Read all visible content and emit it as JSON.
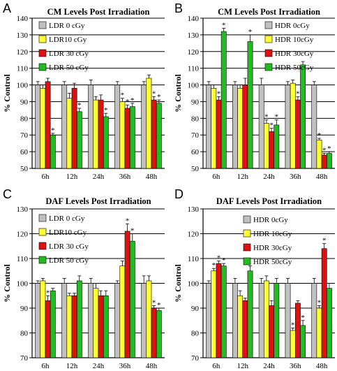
{
  "colors": {
    "gray": "#c0c0c0",
    "yellow": "#ffff33",
    "red": "#dd1111",
    "green": "#22bb22"
  },
  "chart_data": [
    {
      "panel": "A",
      "type": "bar",
      "title": "CM Levels Post Irradiation",
      "xlabel": "",
      "ylabel": "% Control",
      "ylim": [
        50,
        140
      ],
      "yticks": [
        "50",
        "60",
        "70",
        "80",
        "90",
        "100",
        "110",
        "120",
        "130",
        "140"
      ],
      "grid": true,
      "legend_position": "top-left",
      "categories": [
        "6h",
        "12h",
        "24h",
        "36h",
        "48h"
      ],
      "series": [
        {
          "name": "LDR 0 cGy",
          "color": "gray",
          "values": [
            100,
            100,
            100,
            100,
            100
          ],
          "errors": [
            2,
            2,
            3,
            2,
            2
          ],
          "significant": [
            false,
            false,
            false,
            false,
            false
          ]
        },
        {
          "name": "LDR10 cGy",
          "color": "yellow",
          "values": [
            98,
            92,
            91,
            90,
            104
          ],
          "errors": [
            2,
            3,
            2,
            2,
            2
          ],
          "significant": [
            false,
            false,
            false,
            true,
            false
          ]
        },
        {
          "name": "LDR 30 cGy",
          "color": "red",
          "values": [
            102,
            98,
            91,
            86,
            91
          ],
          "errors": [
            2,
            3,
            3,
            2,
            2
          ],
          "significant": [
            false,
            false,
            false,
            true,
            true
          ]
        },
        {
          "name": "LDR 50 cGy",
          "color": "green",
          "values": [
            70,
            84,
            81,
            87,
            89
          ],
          "errors": [
            1,
            2,
            2,
            2,
            2
          ],
          "significant": [
            true,
            true,
            true,
            true,
            true
          ]
        }
      ]
    },
    {
      "panel": "B",
      "type": "bar",
      "title": "CM Levels Post Irradiation",
      "xlabel": "",
      "ylabel": "% Control",
      "ylim": [
        50,
        140
      ],
      "yticks": [
        "50",
        "60",
        "70",
        "80",
        "90",
        "100",
        "110",
        "120",
        "130",
        "140"
      ],
      "grid": true,
      "legend_position": "top-left",
      "categories": [
        "6h",
        "12h",
        "24h",
        "36h",
        "48h"
      ],
      "series": [
        {
          "name": "HDR 0cGy",
          "color": "gray",
          "values": [
            100,
            100,
            100,
            100,
            100
          ],
          "errors": [
            2,
            2,
            4,
            2,
            2
          ],
          "significant": [
            false,
            false,
            false,
            false,
            false
          ]
        },
        {
          "name": "HDR 10cGy",
          "color": "yellow",
          "values": [
            98,
            98,
            77,
            101,
            67
          ],
          "errors": [
            2,
            2,
            2,
            2,
            1
          ],
          "significant": [
            false,
            false,
            true,
            false,
            true
          ]
        },
        {
          "name": "HDR 30cGy",
          "color": "red",
          "values": [
            91,
            100,
            72,
            91,
            58
          ],
          "errors": [
            2,
            4,
            2,
            2,
            1
          ],
          "significant": [
            true,
            false,
            true,
            true,
            true
          ]
        },
        {
          "name": "HDR 50cGy",
          "color": "green",
          "values": [
            132,
            126,
            76,
            112,
            59
          ],
          "errors": [
            2,
            4,
            3,
            2,
            1
          ],
          "significant": [
            true,
            true,
            true,
            false,
            true
          ]
        }
      ]
    },
    {
      "panel": "C",
      "type": "bar",
      "title": "DAF Levels Post Irradiation",
      "xlabel": "",
      "ylabel": "% Control",
      "ylim": [
        70,
        130
      ],
      "yticks": [
        "70",
        "80",
        "90",
        "100",
        "110",
        "120",
        "130"
      ],
      "grid": true,
      "legend_position": "top-left",
      "categories": [
        "6h",
        "12h",
        "24h",
        "36h",
        "48h"
      ],
      "series": [
        {
          "name": "LDR 0 cGy",
          "color": "gray",
          "values": [
            100,
            100,
            100,
            100,
            100
          ],
          "errors": [
            1,
            2,
            2,
            1,
            3
          ],
          "significant": [
            false,
            false,
            false,
            false,
            false
          ]
        },
        {
          "name": "LDR10 cGy",
          "color": "yellow",
          "values": [
            101,
            95,
            98,
            107,
            101
          ],
          "errors": [
            1,
            1,
            2,
            2,
            2
          ],
          "significant": [
            false,
            false,
            false,
            false,
            false
          ]
        },
        {
          "name": "LDR 30 cGy",
          "color": "red",
          "values": [
            93,
            95,
            95,
            121,
            90
          ],
          "errors": [
            2,
            1,
            2,
            3,
            1
          ],
          "significant": [
            true,
            false,
            false,
            true,
            true
          ]
        },
        {
          "name": "LDR 50 cGy",
          "color": "green",
          "values": [
            97,
            101,
            95,
            117,
            89
          ],
          "errors": [
            1,
            2,
            2,
            3,
            1
          ],
          "significant": [
            false,
            false,
            false,
            true,
            true
          ]
        }
      ]
    },
    {
      "panel": "D",
      "type": "bar",
      "title": "DAF Levels Post Irradiation",
      "xlabel": "",
      "ylabel": "% Control",
      "ylim": [
        70,
        130
      ],
      "yticks": [
        "70",
        "80",
        "90",
        "100",
        "110",
        "120",
        "130"
      ],
      "grid": true,
      "legend_position": "top-right",
      "categories": [
        "6h",
        "12h",
        "24h",
        "36h",
        "48h"
      ],
      "series": [
        {
          "name": "HDR 0cGy",
          "color": "gray",
          "values": [
            100,
            100,
            100,
            100,
            100
          ],
          "errors": [
            1,
            2,
            2,
            2,
            2
          ],
          "significant": [
            false,
            false,
            false,
            false,
            false
          ]
        },
        {
          "name": "HDR 10cGy",
          "color": "yellow",
          "values": [
            105,
            95,
            101,
            81,
            90
          ],
          "errors": [
            1,
            2,
            2,
            1,
            1
          ],
          "significant": [
            true,
            false,
            false,
            true,
            true
          ]
        },
        {
          "name": "HDR 30cGy",
          "color": "red",
          "values": [
            108,
            93,
            91,
            92,
            114
          ],
          "errors": [
            1,
            1,
            2,
            1,
            2
          ],
          "significant": [
            true,
            false,
            false,
            false,
            true
          ]
        },
        {
          "name": "HDR 50cGy",
          "color": "green",
          "values": [
            107,
            105,
            100,
            83,
            98
          ],
          "errors": [
            1,
            2,
            2,
            2,
            2
          ],
          "significant": [
            true,
            false,
            false,
            true,
            false
          ]
        }
      ]
    }
  ]
}
